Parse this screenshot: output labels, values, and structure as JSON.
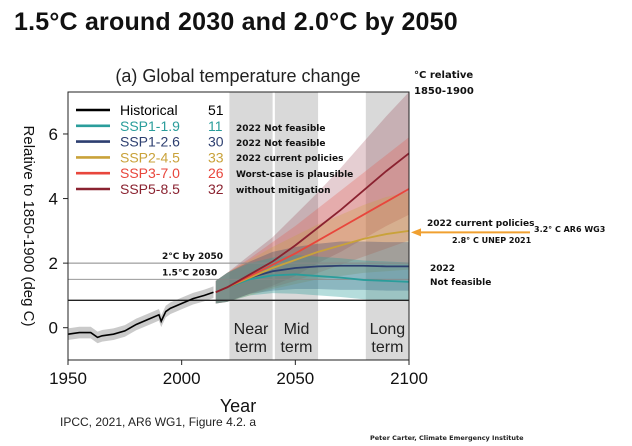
{
  "slide_title": "1.5°C around 2030 and 2.0°C by 2050",
  "credit_left": "IPCC, 2021, AR6 WG1, Figure 4.2. a",
  "credit_right": "Peter Carter, Climate Emergency Institute",
  "colors": {
    "ssp119": "#2a9d9b",
    "ssp126": "#2d3f70",
    "ssp245": "#c9a23a",
    "ssp370": "#e8463c",
    "ssp585": "#8a2230",
    "historical": "#000000",
    "band": "#d9d9d9",
    "arrow": "#f0a030"
  },
  "chart_data": {
    "type": "line",
    "title": "(a) Global temperature change",
    "xlabel": "Year",
    "ylabel": "Relative to 1850-1900 (deg C)",
    "corner_label": "°C relative\n1850-1900",
    "xlim": [
      1950,
      2100
    ],
    "ylim": [
      -1,
      7.3
    ],
    "xticks": [
      1950,
      2000,
      2050,
      2100
    ],
    "yticks": [
      0,
      2,
      4,
      6
    ],
    "legend": [
      {
        "name": "Historical",
        "count": "51",
        "key": "historical"
      },
      {
        "name": "SSP1-1.9",
        "count": "11",
        "key": "ssp119"
      },
      {
        "name": "SSP1-2.6",
        "count": "30",
        "key": "ssp126"
      },
      {
        "name": "SSP2-4.5",
        "count": "33",
        "key": "ssp245"
      },
      {
        "name": "SSP3-7.0",
        "count": "26",
        "key": "ssp370"
      },
      {
        "name": "SSP5-8.5",
        "count": "32",
        "key": "ssp585"
      }
    ],
    "legend_notes": [
      {
        "text": "2022 Not feasible",
        "key": "ssp119"
      },
      {
        "text": "2022 Not feasible",
        "key": "ssp126"
      },
      {
        "text": "2022 current policies",
        "key": "ssp245"
      },
      {
        "text": "Worst-case is plausible",
        "key": "ssp370"
      },
      {
        "text": "without  mitigation",
        "key": "ssp585"
      }
    ],
    "historical": {
      "x": [
        1950,
        1955,
        1960,
        1963,
        1965,
        1970,
        1975,
        1980,
        1985,
        1990,
        1991,
        1993,
        1995,
        2000,
        2005,
        2010,
        2014
      ],
      "y": [
        -0.2,
        -0.15,
        -0.15,
        -0.3,
        -0.25,
        -0.2,
        -0.1,
        0.1,
        0.25,
        0.4,
        0.2,
        0.5,
        0.6,
        0.75,
        0.9,
        1.0,
        1.1
      ]
    },
    "scenarios": [
      {
        "key": "ssp119",
        "x": [
          2015,
          2020,
          2030,
          2040,
          2050,
          2060,
          2070,
          2080,
          2090,
          2100
        ],
        "y": [
          1.1,
          1.25,
          1.5,
          1.62,
          1.65,
          1.6,
          1.55,
          1.48,
          1.45,
          1.42
        ],
        "band": [
          0.35,
          0.45,
          0.5,
          0.55,
          0.6,
          0.6,
          0.6,
          0.6,
          0.6,
          0.6
        ]
      },
      {
        "key": "ssp126",
        "x": [
          2015,
          2020,
          2030,
          2040,
          2050,
          2060,
          2070,
          2080,
          2090,
          2100
        ],
        "y": [
          1.1,
          1.25,
          1.55,
          1.75,
          1.85,
          1.9,
          1.92,
          1.92,
          1.9,
          1.9
        ],
        "band": [
          0.35,
          0.45,
          0.5,
          0.6,
          0.65,
          0.7,
          0.75,
          0.75,
          0.75,
          0.75
        ]
      },
      {
        "key": "ssp245",
        "x": [
          2015,
          2020,
          2030,
          2040,
          2050,
          2060,
          2070,
          2080,
          2090,
          2100
        ],
        "y": [
          1.1,
          1.25,
          1.55,
          1.85,
          2.1,
          2.35,
          2.55,
          2.75,
          2.9,
          3.0
        ],
        "band": [
          0.35,
          0.45,
          0.55,
          0.65,
          0.75,
          0.85,
          0.95,
          1.05,
          1.15,
          1.2
        ]
      },
      {
        "key": "ssp370",
        "x": [
          2015,
          2020,
          2030,
          2040,
          2050,
          2060,
          2070,
          2080,
          2090,
          2100
        ],
        "y": [
          1.1,
          1.25,
          1.6,
          1.95,
          2.3,
          2.7,
          3.1,
          3.5,
          3.9,
          4.3
        ],
        "band": [
          0.35,
          0.45,
          0.55,
          0.7,
          0.85,
          1.0,
          1.15,
          1.3,
          1.45,
          1.6
        ]
      },
      {
        "key": "ssp585",
        "x": [
          2015,
          2020,
          2030,
          2040,
          2050,
          2060,
          2070,
          2080,
          2090,
          2100
        ],
        "y": [
          1.1,
          1.25,
          1.65,
          2.05,
          2.55,
          3.1,
          3.65,
          4.25,
          4.85,
          5.4
        ],
        "band": [
          0.35,
          0.45,
          0.6,
          0.75,
          0.95,
          1.1,
          1.3,
          1.5,
          1.7,
          1.9
        ]
      }
    ],
    "reference_lines": [
      {
        "y": 2.0,
        "label": "2°C by 2050"
      },
      {
        "y": 1.5,
        "label": "1.5°C 2030"
      },
      {
        "y": 0.85,
        "label": ""
      }
    ],
    "periods": [
      {
        "from": 2021,
        "to": 2040,
        "label1": "Near",
        "label2": "term"
      },
      {
        "from": 2041,
        "to": 2060,
        "label1": "Mid",
        "label2": "term"
      },
      {
        "from": 2081,
        "to": 2100,
        "label1": "Long",
        "label2": "term"
      }
    ],
    "annotations": {
      "current_policies": "2022 current policies",
      "ar6": "3.2° C   AR6 WG3",
      "unep": "2.8° C UNEP 2021",
      "not_feasible_1": "2022",
      "not_feasible_2": "Not feasible"
    }
  }
}
